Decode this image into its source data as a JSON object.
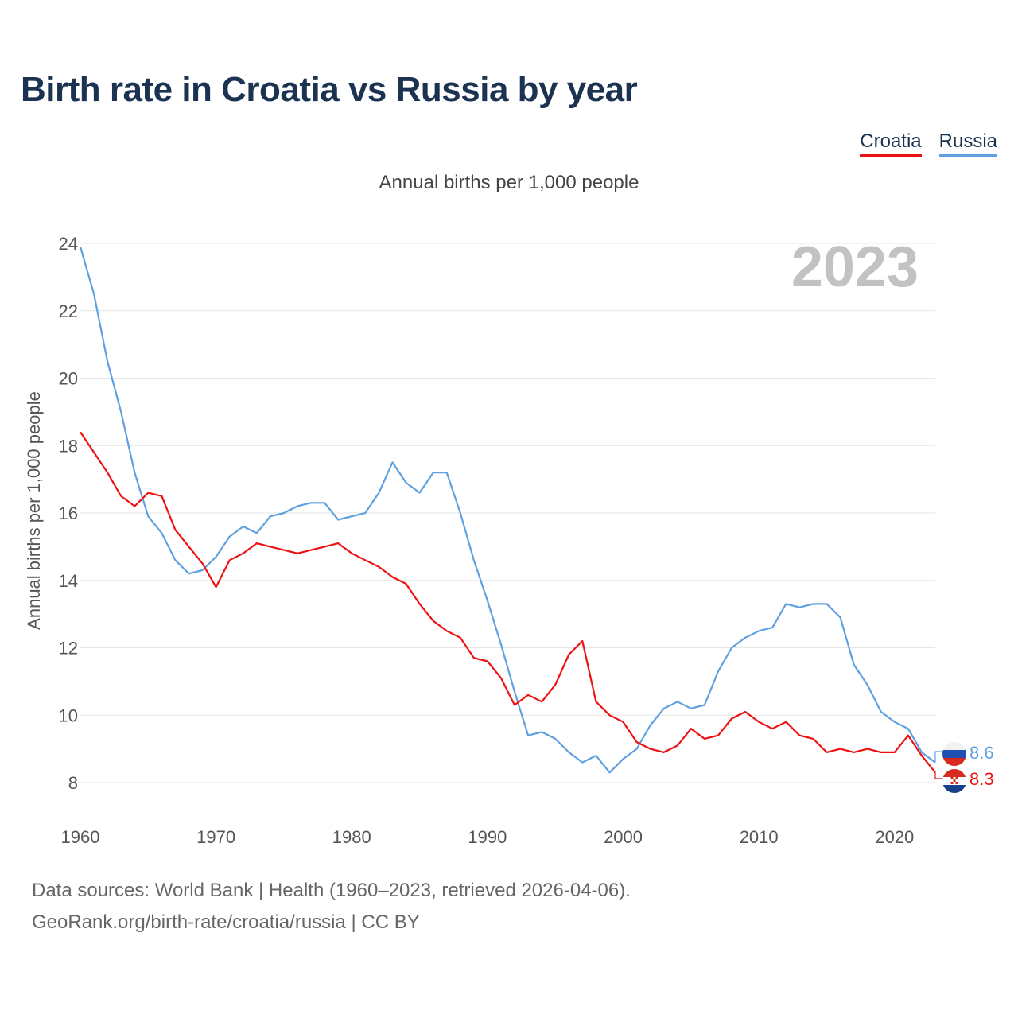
{
  "title": "Birth rate in Croatia vs Russia by year",
  "subtitle": "Annual births per 1,000 people",
  "legend": {
    "croatia": "Croatia",
    "russia": "Russia"
  },
  "colors": {
    "croatia": "#ee1111",
    "russia": "#5fa0e0",
    "title": "#1b3350"
  },
  "year_label": "2023",
  "end_labels": {
    "russia": "8.6",
    "croatia": "8.3"
  },
  "source_line1": "Data sources: World Bank | Health (1960–2023, retrieved 2026-04-06).",
  "source_line2": "GeoRank.org/birth-rate/croatia/russia | CC BY",
  "chart_data": {
    "type": "line",
    "title": "Birth rate in Croatia vs Russia by year",
    "ylabel": "Annual births per 1,000 people",
    "xlabel": "",
    "xlim": [
      1960,
      2023
    ],
    "ylim": [
      8,
      24
    ],
    "yticks": [
      8,
      10,
      12,
      14,
      16,
      18,
      20,
      22,
      24
    ],
    "xticks": [
      1960,
      1970,
      1980,
      1990,
      2000,
      2010,
      2020
    ],
    "grid": true,
    "legend_position": "top-right",
    "x": [
      1960,
      1961,
      1962,
      1963,
      1964,
      1965,
      1966,
      1967,
      1968,
      1969,
      1970,
      1971,
      1972,
      1973,
      1974,
      1975,
      1976,
      1977,
      1978,
      1979,
      1980,
      1981,
      1982,
      1983,
      1984,
      1985,
      1986,
      1987,
      1988,
      1989,
      1990,
      1991,
      1992,
      1993,
      1994,
      1995,
      1996,
      1997,
      1998,
      1999,
      2000,
      2001,
      2002,
      2003,
      2004,
      2005,
      2006,
      2007,
      2008,
      2009,
      2010,
      2011,
      2012,
      2013,
      2014,
      2015,
      2016,
      2017,
      2018,
      2019,
      2020,
      2021,
      2022,
      2023
    ],
    "series": [
      {
        "name": "Croatia",
        "color": "#ee1111",
        "values": [
          18.4,
          17.8,
          17.2,
          16.5,
          16.2,
          16.6,
          16.5,
          15.5,
          15.0,
          14.5,
          13.8,
          14.6,
          14.8,
          15.1,
          15.0,
          14.9,
          14.8,
          14.9,
          15.0,
          15.1,
          14.8,
          14.6,
          14.4,
          14.1,
          13.9,
          13.3,
          12.8,
          12.5,
          12.3,
          11.7,
          11.6,
          11.1,
          10.3,
          10.6,
          10.4,
          10.9,
          11.8,
          12.2,
          10.4,
          10.0,
          9.8,
          9.2,
          9.0,
          8.9,
          9.1,
          9.6,
          9.3,
          9.4,
          9.9,
          10.1,
          9.8,
          9.6,
          9.8,
          9.4,
          9.3,
          8.9,
          9.0,
          8.9,
          9.0,
          8.9,
          8.9,
          9.4,
          8.8,
          8.3
        ]
      },
      {
        "name": "Russia",
        "color": "#5fa0e0",
        "values": [
          23.9,
          22.5,
          20.5,
          19.0,
          17.2,
          15.9,
          15.4,
          14.6,
          14.2,
          14.3,
          14.7,
          15.3,
          15.6,
          15.4,
          15.9,
          16.0,
          16.2,
          16.3,
          16.3,
          15.8,
          15.9,
          16.0,
          16.6,
          17.5,
          16.9,
          16.6,
          17.2,
          17.2,
          16.0,
          14.6,
          13.4,
          12.1,
          10.7,
          9.4,
          9.5,
          9.3,
          8.9,
          8.6,
          8.8,
          8.3,
          8.7,
          9.0,
          9.7,
          10.2,
          10.4,
          10.2,
          10.3,
          11.3,
          12.0,
          12.3,
          12.5,
          12.6,
          13.3,
          13.2,
          13.3,
          13.3,
          12.9,
          11.5,
          10.9,
          10.1,
          9.8,
          9.6,
          8.9,
          8.6
        ]
      }
    ]
  }
}
